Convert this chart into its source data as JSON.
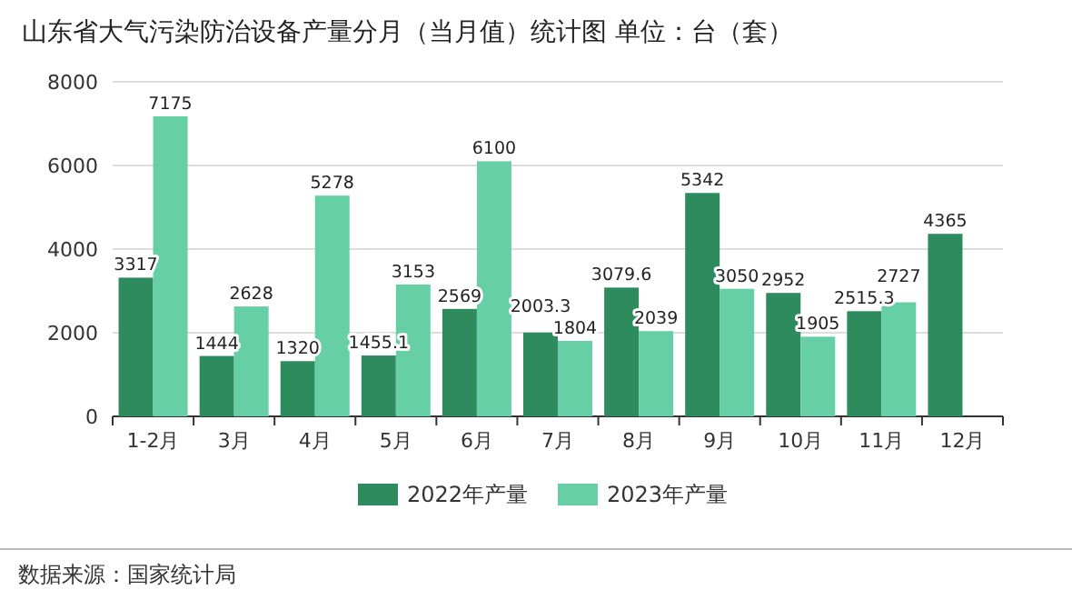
{
  "chart_data": {
    "type": "bar",
    "title": "山东省大气污染防治设备产量分月（当月值）统计图 单位：台（套）",
    "categories": [
      "1-2月",
      "3月",
      "4月",
      "5月",
      "6月",
      "7月",
      "8月",
      "9月",
      "10月",
      "11月",
      "12月"
    ],
    "series": [
      {
        "name": "2022年产量",
        "color": "#2e8b5e",
        "values": [
          3317,
          1444,
          1320,
          1455.1,
          2569,
          2003.3,
          3079.6,
          5342,
          2952,
          2515.3,
          4365
        ]
      },
      {
        "name": "2023年产量",
        "color": "#66cfa6",
        "values": [
          7175,
          2628,
          5278,
          3153,
          6100,
          1804,
          2039,
          3050,
          1905,
          2727,
          null
        ]
      }
    ],
    "ylim": [
      0,
      8000
    ],
    "yticks": [
      0,
      2000,
      4000,
      6000,
      8000
    ],
    "grid": "y",
    "legend": "bottom",
    "data_labels": true,
    "annotations": [
      "数据来源：国家统计局"
    ]
  }
}
